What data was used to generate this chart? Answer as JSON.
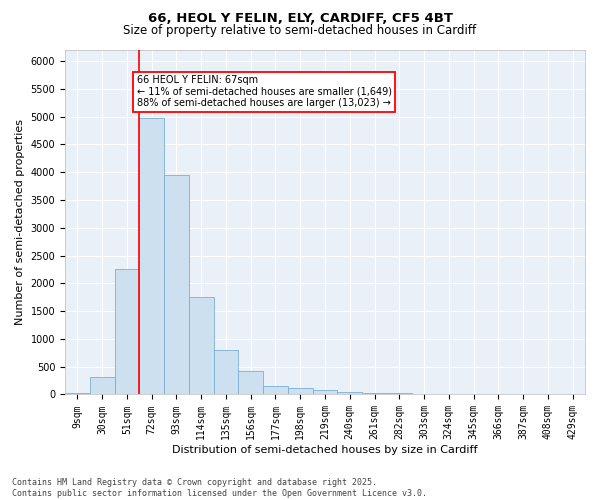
{
  "title1": "66, HEOL Y FELIN, ELY, CARDIFF, CF5 4BT",
  "title2": "Size of property relative to semi-detached houses in Cardiff",
  "xlabel": "Distribution of semi-detached houses by size in Cardiff",
  "ylabel": "Number of semi-detached properties",
  "categories": [
    "9sqm",
    "30sqm",
    "51sqm",
    "72sqm",
    "93sqm",
    "114sqm",
    "135sqm",
    "156sqm",
    "177sqm",
    "198sqm",
    "219sqm",
    "240sqm",
    "261sqm",
    "282sqm",
    "303sqm",
    "324sqm",
    "345sqm",
    "366sqm",
    "387sqm",
    "408sqm",
    "429sqm"
  ],
  "values": [
    20,
    310,
    2250,
    4980,
    3950,
    1750,
    800,
    430,
    160,
    120,
    75,
    48,
    28,
    18,
    10,
    7,
    5,
    4,
    3,
    2,
    1
  ],
  "bar_color": "#cce0f0",
  "bar_edge_color": "#7aafd4",
  "vline_color": "red",
  "vline_pos": 2.5,
  "property_label": "66 HEOL Y FELIN: 67sqm",
  "pct_smaller": 11,
  "count_smaller": "1,649",
  "pct_larger": 88,
  "count_larger": "13,023",
  "ylim": [
    0,
    6200
  ],
  "yticks": [
    0,
    500,
    1000,
    1500,
    2000,
    2500,
    3000,
    3500,
    4000,
    4500,
    5000,
    5500,
    6000
  ],
  "bg_color": "#eaf0f8",
  "grid_color": "#ffffff",
  "footer1": "Contains HM Land Registry data © Crown copyright and database right 2025.",
  "footer2": "Contains public sector information licensed under the Open Government Licence v3.0.",
  "title_fontsize": 9.5,
  "subtitle_fontsize": 8.5,
  "axis_label_fontsize": 8,
  "tick_fontsize": 7,
  "annot_fontsize": 7,
  "footer_fontsize": 6
}
